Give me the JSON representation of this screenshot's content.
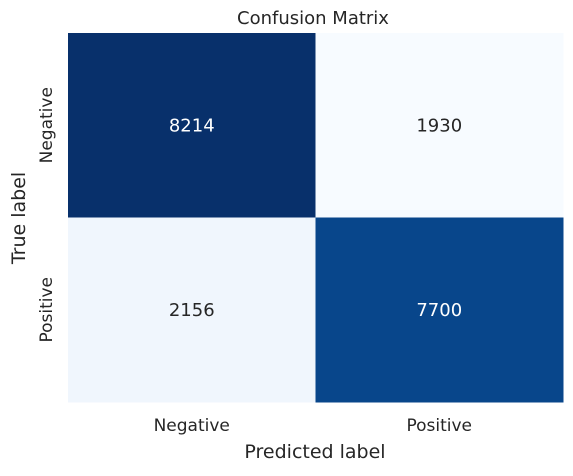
{
  "chart_data": {
    "type": "heatmap",
    "title": "Confusion Matrix",
    "xlabel": "Predicted label",
    "ylabel": "True label",
    "x_categories": [
      "Negative",
      "Positive"
    ],
    "y_categories": [
      "Negative",
      "Positive"
    ],
    "values": [
      [
        8214,
        1930
      ],
      [
        2156,
        7700
      ]
    ],
    "colormap": "Blues",
    "color_range": [
      1930,
      8214
    ],
    "colorbar": false,
    "grid": false
  },
  "colors": {
    "low": "#f7fbff",
    "high": "#08306b",
    "text_on_dark": "#ffffff",
    "text_on_light": "#262626"
  }
}
